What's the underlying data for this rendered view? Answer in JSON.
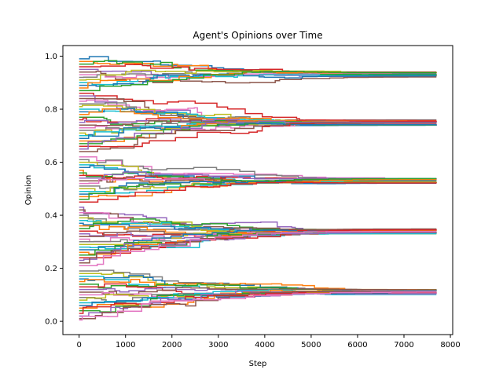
{
  "chart_data": {
    "type": "line",
    "title": "Agent's Opinions over Time",
    "xlabel": "Step",
    "ylabel": "Opinion",
    "xlim": [
      -350,
      8050
    ],
    "ylim": [
      -0.05,
      1.04
    ],
    "xticks": [
      0,
      1000,
      2000,
      3000,
      4000,
      5000,
      6000,
      7000,
      8000
    ],
    "yticks": [
      0.0,
      0.2,
      0.4,
      0.6,
      0.8,
      1.0
    ],
    "xtick_labels": [
      "0",
      "1000",
      "2000",
      "3000",
      "4000",
      "5000",
      "6000",
      "7000",
      "8000"
    ],
    "ytick_labels": [
      "0.0",
      "0.2",
      "0.4",
      "0.6",
      "0.8",
      "1.0"
    ],
    "grid": false,
    "legend": false,
    "line_style": "step",
    "colors": [
      "#1f77b4",
      "#ff7f0e",
      "#2ca02c",
      "#d62728",
      "#9467bd",
      "#8c564b",
      "#e377c2",
      "#7f7f7f",
      "#bcbd22",
      "#17becf"
    ],
    "clusters": [
      {
        "final_value": 0.93,
        "members_initial": [
          0.99,
          0.98,
          0.97,
          0.96,
          0.95,
          0.94,
          0.93,
          0.92,
          0.91,
          0.9,
          0.89,
          0.88,
          0.87
        ]
      },
      {
        "final_value": 0.75,
        "members_initial": [
          0.86,
          0.85,
          0.84,
          0.83,
          0.82,
          0.81,
          0.8,
          0.79,
          0.78,
          0.77,
          0.76,
          0.75,
          0.74,
          0.73,
          0.72,
          0.71,
          0.7,
          0.69,
          0.68,
          0.67,
          0.66,
          0.65,
          0.64
        ]
      },
      {
        "final_value": 0.53,
        "members_initial": [
          0.62,
          0.61,
          0.6,
          0.59,
          0.58,
          0.57,
          0.56,
          0.55,
          0.54,
          0.53,
          0.52,
          0.51,
          0.5,
          0.49,
          0.48,
          0.47,
          0.46,
          0.45
        ]
      },
      {
        "final_value": 0.34,
        "members_initial": [
          0.43,
          0.42,
          0.41,
          0.4,
          0.39,
          0.38,
          0.37,
          0.36,
          0.35,
          0.34,
          0.33,
          0.32,
          0.31,
          0.3,
          0.29,
          0.28,
          0.27,
          0.26,
          0.25,
          0.24,
          0.23,
          0.22,
          0.21
        ]
      },
      {
        "final_value": 0.11,
        "members_initial": [
          0.19,
          0.18,
          0.17,
          0.16,
          0.15,
          0.14,
          0.13,
          0.12,
          0.11,
          0.1,
          0.09,
          0.08,
          0.07,
          0.06,
          0.05,
          0.04,
          0.03,
          0.02,
          0.01,
          0.005
        ]
      }
    ],
    "x_end": 7700
  }
}
